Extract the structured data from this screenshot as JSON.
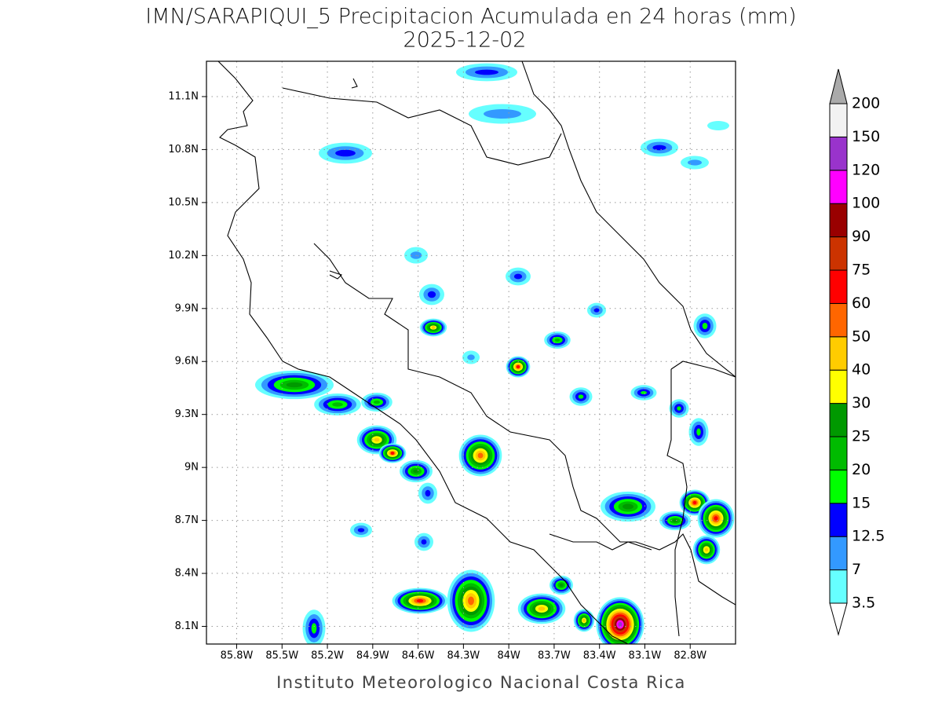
{
  "title": "IMN/SARAPIQUI_5 Precipitacion Acumulada en 24 horas (mm)",
  "subtitle": "2025-12-02",
  "footer": "Instituto Meteorologico Nacional Costa Rica",
  "map": {
    "xlim": [
      -86,
      -82.5
    ],
    "ylim": [
      8,
      11.3
    ],
    "xticks": [
      {
        "value": -85.8,
        "label": "85.8W"
      },
      {
        "value": -85.5,
        "label": "85.5W"
      },
      {
        "value": -85.2,
        "label": "85.2W"
      },
      {
        "value": -84.9,
        "label": "84.9W"
      },
      {
        "value": -84.6,
        "label": "84.6W"
      },
      {
        "value": -84.3,
        "label": "84.3W"
      },
      {
        "value": -84,
        "label": "84W"
      },
      {
        "value": -83.7,
        "label": "83.7W"
      },
      {
        "value": -83.4,
        "label": "83.4W"
      },
      {
        "value": -83.1,
        "label": "83.1W"
      },
      {
        "value": -82.8,
        "label": "82.8W"
      }
    ],
    "yticks": [
      {
        "value": 8.1,
        "label": "8.1N"
      },
      {
        "value": 8.4,
        "label": "8.4N"
      },
      {
        "value": 8.7,
        "label": "8.7N"
      },
      {
        "value": 9,
        "label": "9N"
      },
      {
        "value": 9.3,
        "label": "9.3N"
      },
      {
        "value": 9.6,
        "label": "9.6N"
      },
      {
        "value": 9.9,
        "label": "9.9N"
      },
      {
        "value": 10.2,
        "label": "10.2N"
      },
      {
        "value": 10.5,
        "label": "10.5N"
      },
      {
        "value": 10.8,
        "label": "10.8N"
      },
      {
        "value": 11.1,
        "label": "11.1N"
      }
    ],
    "grid": true
  },
  "colorbar": {
    "levels": [
      3.5,
      7,
      12.5,
      15,
      20,
      25,
      30,
      40,
      50,
      60,
      75,
      90,
      100,
      120,
      150,
      200
    ],
    "colors": [
      "#ffffff",
      "#66ffff",
      "#3399ff",
      "#0000ff",
      "#00ff00",
      "#00bb00",
      "#009900",
      "#ffff00",
      "#ffcc00",
      "#ff6600",
      "#ff0000",
      "#cc3300",
      "#990000",
      "#ff00ff",
      "#9933cc",
      "#f2f2f2",
      "#aaaaaa"
    ]
  }
}
